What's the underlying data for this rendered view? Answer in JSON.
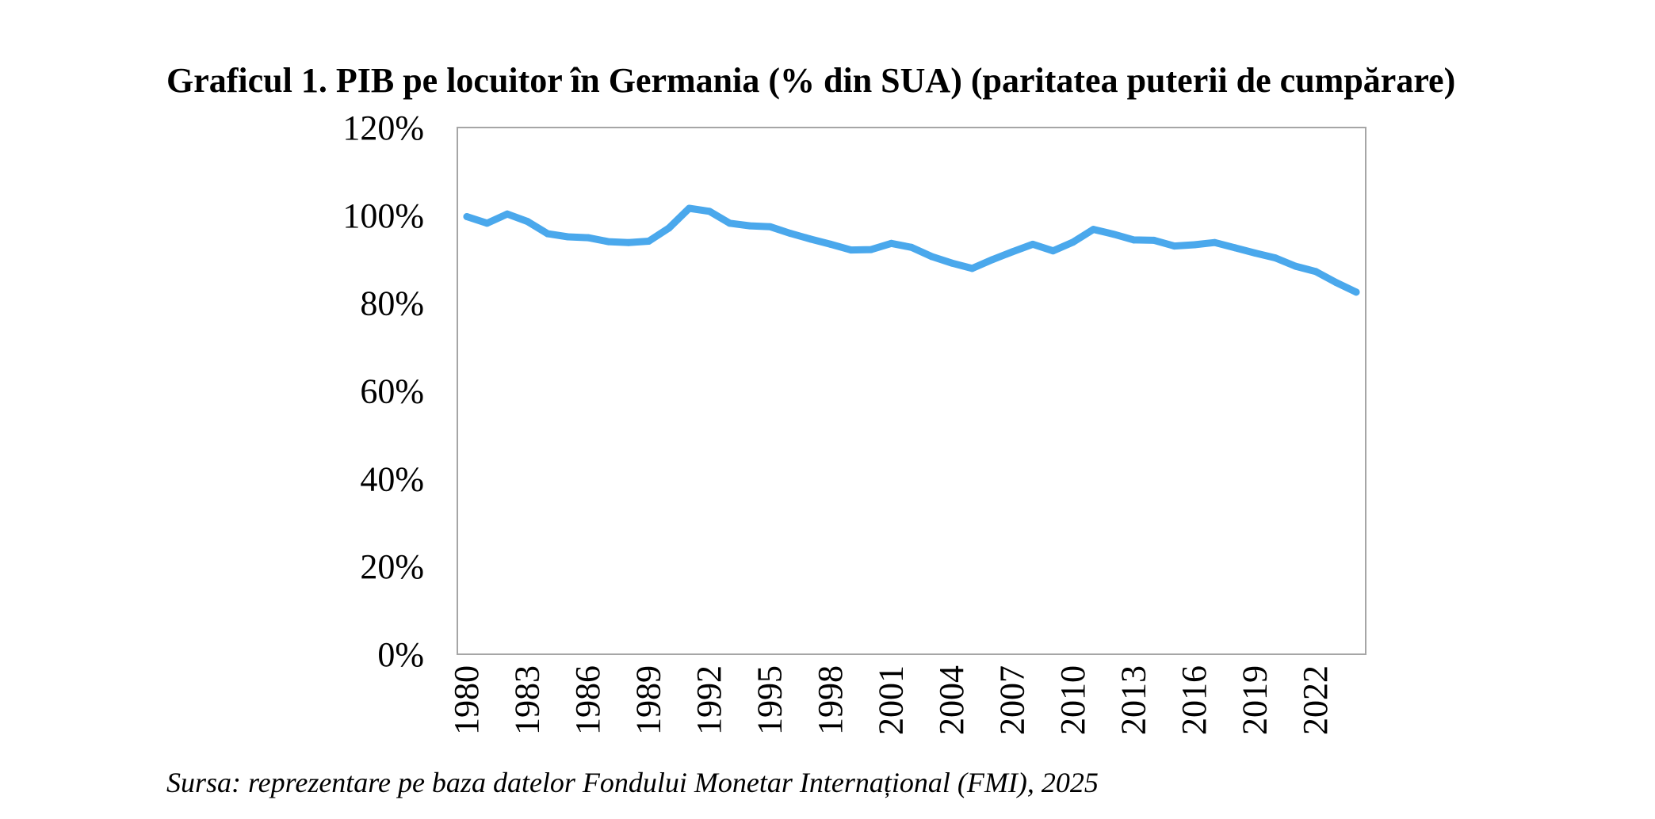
{
  "title": "Graficul 1. PIB pe locuitor în Germania (% din SUA) (paritatea puterii de cumpărare)",
  "source": "Sursa: reprezentare pe baza datelor Fondului Monetar Internațional (FMI), 2025",
  "colors": {
    "series": "#4aa8ec",
    "plot_border": "#a6a6a6",
    "text": "#000000"
  },
  "chart_data": {
    "type": "line",
    "grid": false,
    "legend": "none",
    "ylim": [
      0,
      120
    ],
    "y_unit": "%",
    "y_ticks": [
      0,
      20,
      40,
      60,
      80,
      100,
      120
    ],
    "y_tick_labels": [
      "0%",
      "20%",
      "40%",
      "60%",
      "80%",
      "100%",
      "120%"
    ],
    "x_tick_labels": [
      "1980",
      "1983",
      "1986",
      "1989",
      "1992",
      "1995",
      "1998",
      "2001",
      "2004",
      "2007",
      "2010",
      "2013",
      "2016",
      "2019",
      "2022"
    ],
    "x": [
      1980,
      1981,
      1982,
      1983,
      1984,
      1985,
      1986,
      1987,
      1988,
      1989,
      1990,
      1991,
      1992,
      1993,
      1994,
      1995,
      1996,
      1997,
      1998,
      1999,
      2000,
      2001,
      2002,
      2003,
      2004,
      2005,
      2006,
      2007,
      2008,
      2009,
      2010,
      2011,
      2012,
      2013,
      2014,
      2015,
      2016,
      2017,
      2018,
      2019,
      2020,
      2021,
      2022,
      2023,
      2024
    ],
    "series": [
      {
        "values": [
          99.7,
          98.2,
          100.3,
          98.6,
          95.8,
          95.1,
          94.9,
          94.0,
          93.8,
          94.1,
          97.1,
          101.6,
          100.9,
          98.2,
          97.6,
          97.4,
          95.9,
          94.6,
          93.4,
          92.1,
          92.2,
          93.6,
          92.7,
          90.6,
          89.1,
          87.9,
          89.9,
          91.7,
          93.4,
          91.9,
          93.9,
          96.8,
          95.7,
          94.4,
          94.3,
          93.0,
          93.3,
          93.8,
          92.6,
          91.4,
          90.3,
          88.4,
          87.2,
          84.7,
          82.5
        ]
      }
    ]
  }
}
